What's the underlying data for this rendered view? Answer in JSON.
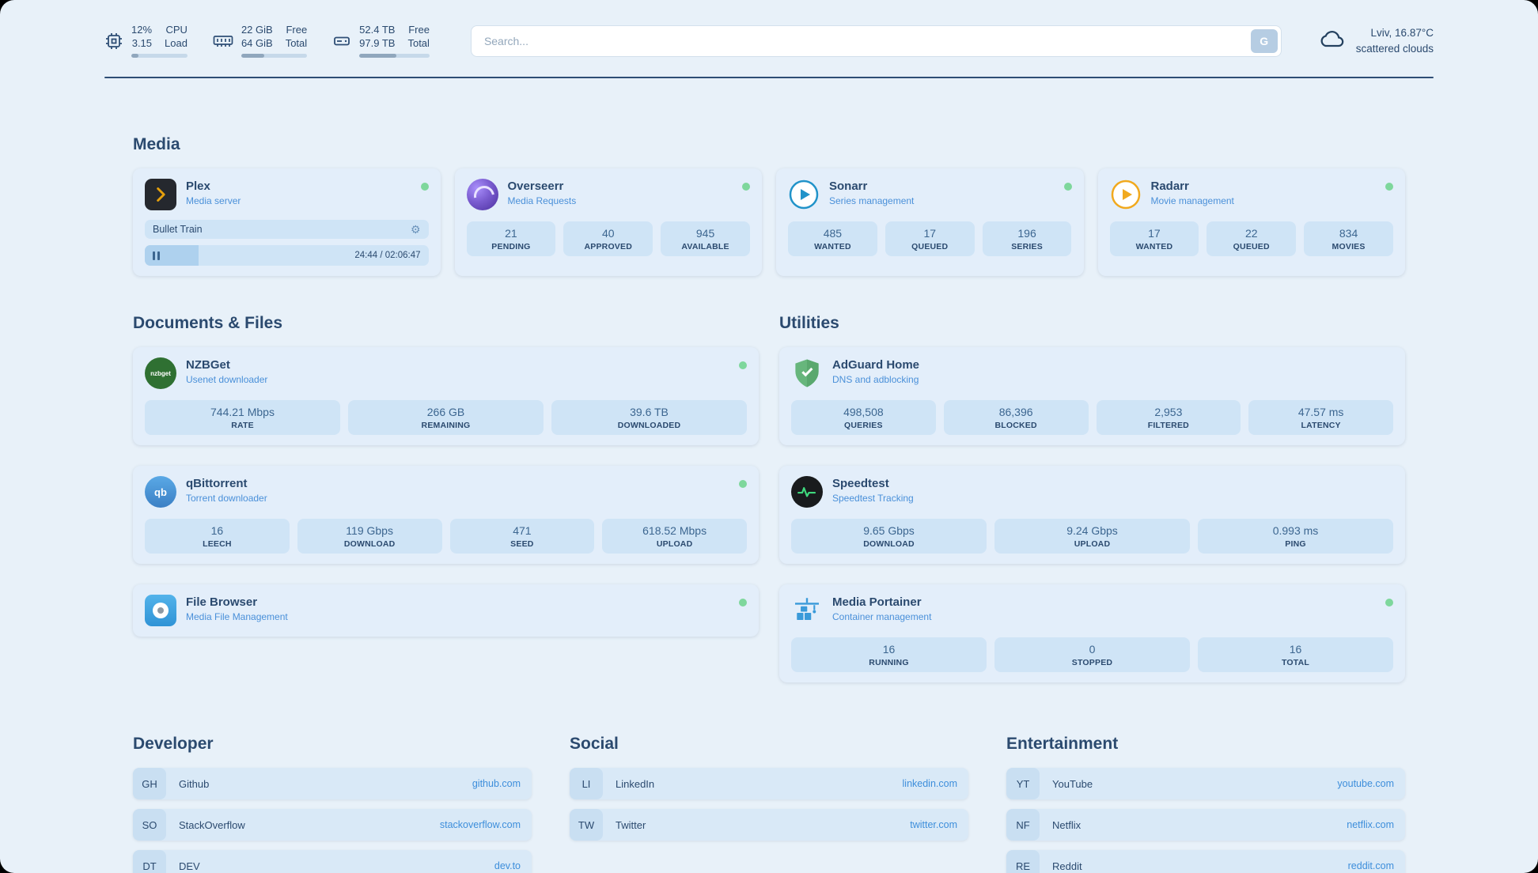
{
  "colors": {
    "background": "#e8f1f9",
    "card": "#e3eefa",
    "stat_box": "#cfe4f6",
    "text": "#2b4a6f",
    "accent_link": "#3d8edb",
    "status_dot": "#7ed79c",
    "divider": "#2e4e75"
  },
  "topbar": {
    "cpu": {
      "value": "12%",
      "label1": "CPU",
      "value2": "3.15",
      "label2": "Load",
      "percent": 12
    },
    "memory": {
      "value": "22 GiB",
      "label1": "Free",
      "value2": "64 GiB",
      "label2": "Total",
      "percent": 35
    },
    "disk": {
      "value": "52.4 TB",
      "label1": "Free",
      "value2": "97.9 TB",
      "label2": "Total",
      "percent": 53
    },
    "search": {
      "placeholder": "Search...",
      "button_label": "G"
    },
    "weather": {
      "location": "Lviv, 16.87°C",
      "condition": "scattered clouds"
    }
  },
  "sections": {
    "media": {
      "title": "Media",
      "plex": {
        "name": "Plex",
        "subtitle": "Media server",
        "now_playing": "Bullet Train",
        "time": "24:44 / 02:06:47",
        "progress_percent": 19
      },
      "overseerr": {
        "name": "Overseerr",
        "subtitle": "Media Requests",
        "stats": [
          {
            "value": "21",
            "label": "PENDING"
          },
          {
            "value": "40",
            "label": "APPROVED"
          },
          {
            "value": "945",
            "label": "AVAILABLE"
          }
        ]
      },
      "sonarr": {
        "name": "Sonarr",
        "subtitle": "Series management",
        "stats": [
          {
            "value": "485",
            "label": "WANTED"
          },
          {
            "value": "17",
            "label": "QUEUED"
          },
          {
            "value": "196",
            "label": "SERIES"
          }
        ]
      },
      "radarr": {
        "name": "Radarr",
        "subtitle": "Movie management",
        "stats": [
          {
            "value": "17",
            "label": "WANTED"
          },
          {
            "value": "22",
            "label": "QUEUED"
          },
          {
            "value": "834",
            "label": "MOVIES"
          }
        ]
      }
    },
    "documents": {
      "title": "Documents & Files",
      "nzbget": {
        "name": "NZBGet",
        "subtitle": "Usenet downloader",
        "icon_text": "nzbget",
        "stats": [
          {
            "value": "744.21 Mbps",
            "label": "RATE"
          },
          {
            "value": "266 GB",
            "label": "REMAINING"
          },
          {
            "value": "39.6 TB",
            "label": "DOWNLOADED"
          }
        ]
      },
      "qbittorrent": {
        "name": "qBittorrent",
        "subtitle": "Torrent downloader",
        "icon_text": "qb",
        "stats": [
          {
            "value": "16",
            "label": "LEECH"
          },
          {
            "value": "119 Gbps",
            "label": "DOWNLOAD"
          },
          {
            "value": "471",
            "label": "SEED"
          },
          {
            "value": "618.52 Mbps",
            "label": "UPLOAD"
          }
        ]
      },
      "filebrowser": {
        "name": "File Browser",
        "subtitle": "Media File Management"
      }
    },
    "utilities": {
      "title": "Utilities",
      "adguard": {
        "name": "AdGuard Home",
        "subtitle": "DNS and adblocking",
        "stats": [
          {
            "value": "498,508",
            "label": "QUERIES"
          },
          {
            "value": "86,396",
            "label": "BLOCKED"
          },
          {
            "value": "2,953",
            "label": "FILTERED"
          },
          {
            "value": "47.57 ms",
            "label": "LATENCY"
          }
        ]
      },
      "speedtest": {
        "name": "Speedtest",
        "subtitle": "Speedtest Tracking",
        "stats": [
          {
            "value": "9.65 Gbps",
            "label": "DOWNLOAD"
          },
          {
            "value": "9.24 Gbps",
            "label": "UPLOAD"
          },
          {
            "value": "0.993 ms",
            "label": "PING"
          }
        ]
      },
      "portainer": {
        "name": "Media Portainer",
        "subtitle": "Container management",
        "stats": [
          {
            "value": "16",
            "label": "RUNNING"
          },
          {
            "value": "0",
            "label": "STOPPED"
          },
          {
            "value": "16",
            "label": "TOTAL"
          }
        ]
      }
    },
    "bookmarks": [
      {
        "title": "Developer",
        "items": [
          {
            "abbr": "GH",
            "name": "Github",
            "url": "github.com"
          },
          {
            "abbr": "SO",
            "name": "StackOverflow",
            "url": "stackoverflow.com"
          },
          {
            "abbr": "DT",
            "name": "DEV",
            "url": "dev.to"
          }
        ]
      },
      {
        "title": "Social",
        "items": [
          {
            "abbr": "LI",
            "name": "LinkedIn",
            "url": "linkedin.com"
          },
          {
            "abbr": "TW",
            "name": "Twitter",
            "url": "twitter.com"
          }
        ]
      },
      {
        "title": "Entertainment",
        "items": [
          {
            "abbr": "YT",
            "name": "YouTube",
            "url": "youtube.com"
          },
          {
            "abbr": "NF",
            "name": "Netflix",
            "url": "netflix.com"
          },
          {
            "abbr": "RE",
            "name": "Reddit",
            "url": "reddit.com"
          }
        ]
      }
    ]
  }
}
